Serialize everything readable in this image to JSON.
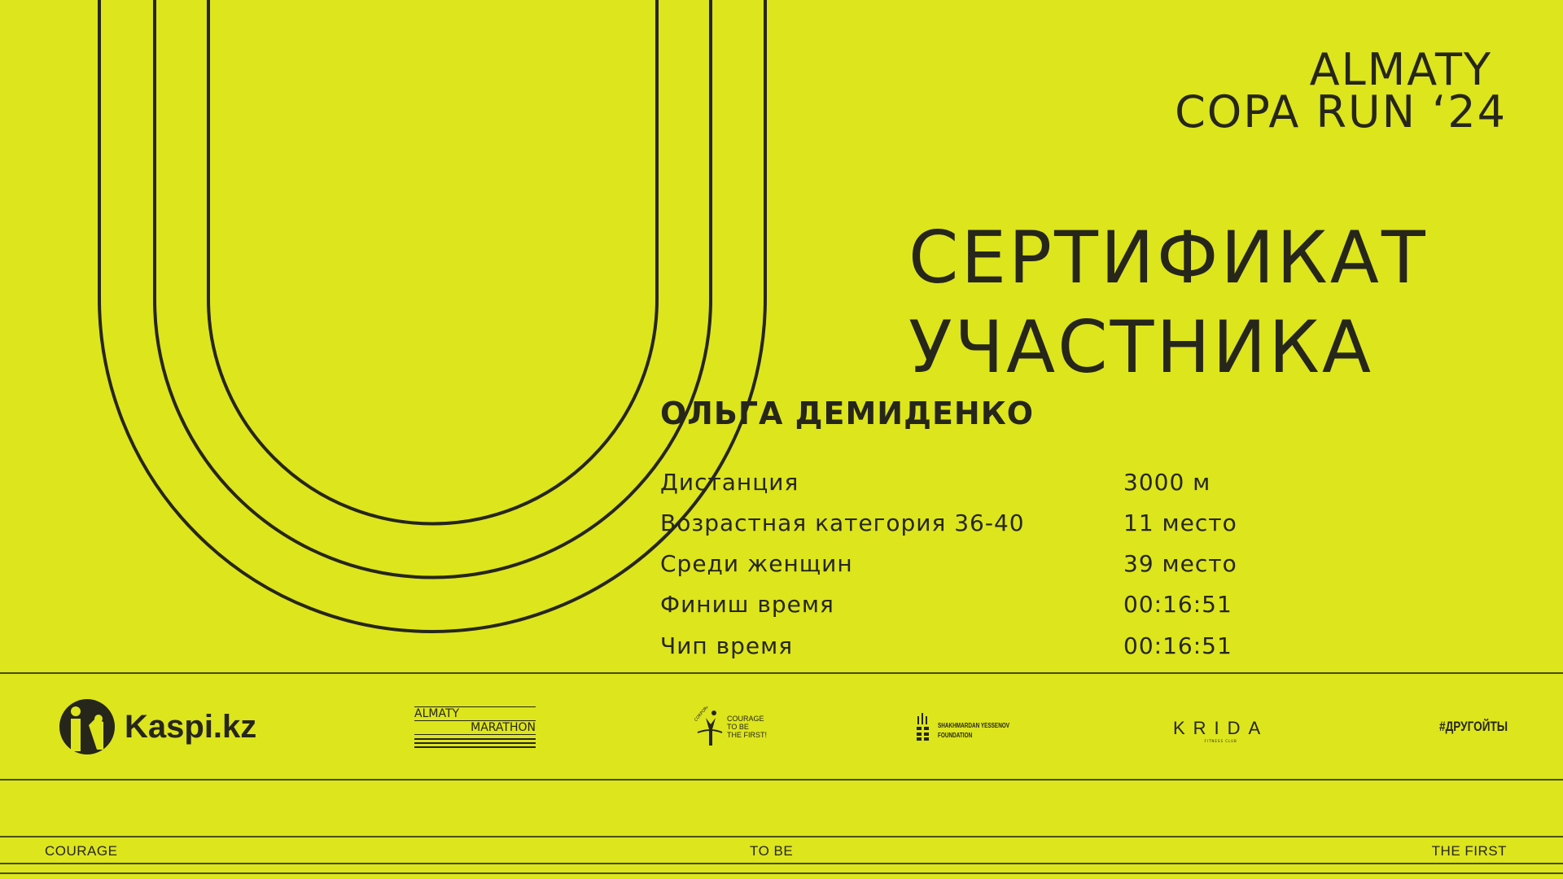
{
  "event": {
    "line1": "ALMATY",
    "line2": "COPA RUN ‘24"
  },
  "certificate": {
    "line1": "СЕРТИФИКАТ",
    "line2": "УЧАСТНИКА"
  },
  "participant": {
    "name": "ОЛЬГА ДЕМИДЕНКО"
  },
  "results": [
    {
      "label": "Дистанция",
      "value": "3000 м"
    },
    {
      "label": "Возрастная категория 36-40",
      "value": "11 место"
    },
    {
      "label": "Среди женщин",
      "value": "39 место"
    },
    {
      "label": "Финиш время",
      "value": "00:16:51"
    },
    {
      "label": "Чип время",
      "value": "00:16:51"
    }
  ],
  "sponsors": {
    "kaspi": "Kaspi.kz",
    "almaty_marathon": {
      "line1": "ALMATY",
      "line2": "MARATHON"
    },
    "courage_fund": {
      "arc": "CORPORATE FUND",
      "line1": "COURAGE",
      "line2": "TO BE",
      "line3": "THE FIRST!"
    },
    "yessenov": {
      "line1": "SHAKHMARDAN YESSENOV",
      "line2": "FOUNDATION"
    },
    "krida": {
      "name": "KRIDA",
      "sub": "FITNESS CLUB"
    },
    "drugoity": "#ДРУГОЙТЫ"
  },
  "footer": {
    "left": "COURAGE",
    "center": "TO BE",
    "right": "THE FIRST"
  },
  "colors": {
    "background": "#dde51d",
    "ink": "#26261a"
  }
}
